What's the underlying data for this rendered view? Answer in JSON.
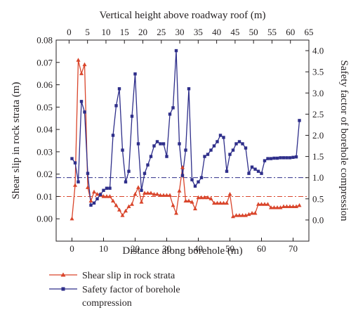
{
  "chart_data": {
    "type": "line",
    "xlabel_bottom": "Distance along borehole (m)",
    "xlabel_top": "Vertical height above roadway roof (m)",
    "ylabel_left": "Shear slip in rock strata (m)",
    "ylabel_right": "Safety factor of borehole compression",
    "xlim_bottom": [
      -5,
      75
    ],
    "xticks_bottom": [
      "0",
      "10",
      "20",
      "30",
      "40",
      "50",
      "60",
      "70"
    ],
    "xlim_top": [
      -3.5,
      65
    ],
    "xticks_top": [
      "0",
      "5",
      "10",
      "15",
      "20",
      "25",
      "30",
      "35",
      "40",
      "45",
      "50",
      "55",
      "60",
      "65"
    ],
    "ylim_left": [
      -0.01,
      0.08
    ],
    "yticks_left": [
      "0.00",
      "0.01",
      "0.02",
      "0.03",
      "0.04",
      "0.05",
      "0.06",
      "0.07",
      "0.08"
    ],
    "ylim_right": [
      -0.5,
      4.25
    ],
    "yticks_right": [
      "0.0",
      "0.5",
      "1.0",
      "1.5",
      "2.0",
      "2.5",
      "3.0",
      "3.5",
      "4.0"
    ],
    "reference_lines": [
      {
        "axis": "left",
        "y": 0.01,
        "color": "#d9452b",
        "style": "dash-dot"
      },
      {
        "axis": "right",
        "y": 1.0,
        "color": "#2e2e8a",
        "style": "dash-dot"
      }
    ],
    "legend_position": "bottom-left",
    "series": [
      {
        "name": "Shear slip in rock strata",
        "axis": "left",
        "color": "#d9452b",
        "marker": "triangle",
        "x": [
          0,
          1,
          2,
          3,
          4,
          5,
          6,
          7,
          8,
          9,
          10,
          11,
          12,
          13,
          14,
          15,
          16,
          17,
          18,
          19,
          20,
          21,
          22,
          23,
          24,
          25,
          26,
          27,
          28,
          29,
          30,
          31,
          32,
          33,
          34,
          35,
          36,
          37,
          38,
          39,
          40,
          41,
          42,
          43,
          44,
          45,
          46,
          47,
          48,
          49,
          50,
          51,
          52,
          53,
          54,
          55,
          56,
          57,
          58,
          59,
          60,
          61,
          62,
          63,
          64,
          65,
          66,
          67,
          68,
          69,
          70,
          71,
          72
        ],
        "y": [
          0.0,
          0.015,
          0.071,
          0.065,
          0.069,
          0.014,
          0.008,
          0.012,
          0.011,
          0.011,
          0.01,
          0.01,
          0.01,
          0.008,
          0.006,
          0.004,
          0.0015,
          0.0035,
          0.0055,
          0.0065,
          0.011,
          0.014,
          0.0075,
          0.0115,
          0.0115,
          0.0115,
          0.011,
          0.011,
          0.0105,
          0.0105,
          0.0105,
          0.0105,
          0.006,
          0.0025,
          0.0125,
          0.023,
          0.008,
          0.008,
          0.0075,
          0.0045,
          0.0095,
          0.0095,
          0.0095,
          0.0095,
          0.009,
          0.007,
          0.007,
          0.007,
          0.007,
          0.007,
          0.011,
          0.001,
          0.0015,
          0.0015,
          0.0015,
          0.0015,
          0.002,
          0.0025,
          0.0025,
          0.0065,
          0.0065,
          0.0065,
          0.0065,
          0.005,
          0.005,
          0.005,
          0.005,
          0.0055,
          0.0055,
          0.0055,
          0.0055,
          0.0055,
          0.006
        ]
      },
      {
        "name": "Safety factor of borehole compression",
        "axis": "right",
        "color": "#2e2e8a",
        "marker": "square",
        "x": [
          0,
          1,
          2,
          3,
          4,
          5,
          6,
          7,
          8,
          9,
          10,
          11,
          12,
          13,
          14,
          15,
          16,
          17,
          18,
          19,
          20,
          21,
          22,
          23,
          24,
          25,
          26,
          27,
          28,
          29,
          30,
          31,
          32,
          33,
          34,
          35,
          36,
          37,
          38,
          39,
          40,
          41,
          42,
          43,
          44,
          45,
          46,
          47,
          48,
          49,
          50,
          51,
          52,
          53,
          54,
          55,
          56,
          57,
          58,
          59,
          60,
          61,
          62,
          63,
          64,
          65,
          66,
          67,
          68,
          69,
          70,
          71,
          72
        ],
        "y": [
          1.45,
          1.35,
          0.9,
          2.8,
          2.55,
          1.1,
          0.35,
          0.4,
          0.5,
          0.6,
          0.7,
          0.75,
          0.75,
          2.0,
          2.7,
          3.1,
          1.65,
          0.9,
          1.15,
          2.45,
          3.45,
          1.8,
          0.7,
          1.1,
          1.3,
          1.5,
          1.75,
          1.85,
          1.8,
          1.8,
          1.5,
          2.5,
          2.65,
          4.0,
          1.8,
          1.05,
          1.65,
          3.1,
          0.95,
          0.8,
          0.9,
          1.0,
          1.5,
          1.55,
          1.65,
          1.75,
          1.85,
          2.0,
          1.95,
          1.15,
          1.55,
          1.65,
          1.8,
          1.85,
          1.8,
          1.7,
          1.1,
          1.25,
          1.2,
          1.15,
          1.1,
          1.4,
          1.45,
          1.45,
          1.46,
          1.46,
          1.47,
          1.47,
          1.47,
          1.47,
          1.48,
          1.49,
          2.35
        ]
      }
    ]
  }
}
